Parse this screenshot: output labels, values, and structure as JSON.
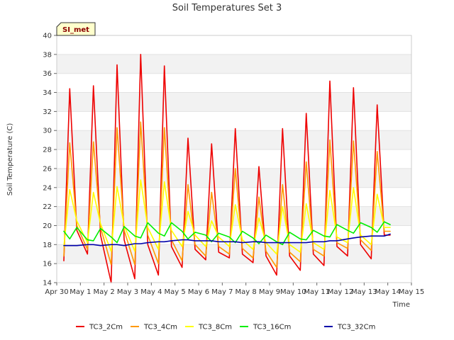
{
  "chart_data": {
    "type": "line",
    "title": "Soil Temperatures Set 3",
    "xlabel": "Time",
    "ylabel": "Soil Temperature (C)",
    "badge": "SI_met",
    "ylim": [
      14,
      40
    ],
    "yticks": [
      14,
      16,
      18,
      20,
      22,
      24,
      26,
      28,
      30,
      32,
      34,
      36,
      38,
      40
    ],
    "xlim": [
      0,
      15
    ],
    "xticks": [
      0,
      1,
      2,
      3,
      4,
      5,
      6,
      7,
      8,
      9,
      10,
      11,
      12,
      13,
      14,
      15
    ],
    "xtick_labels": [
      "Apr 30",
      "May 1",
      "May 2",
      "May 3",
      "May 4",
      "May 5",
      "May 6",
      "May 7",
      "May 8",
      "May 9",
      "May 10",
      "May 11",
      "May 12",
      "May 13",
      "May 14",
      "May 15"
    ],
    "grid": "horizontal bands",
    "legend_position": "bottom",
    "x_days": [
      0.3,
      0.55,
      0.85,
      1.3,
      1.55,
      1.85,
      2.3,
      2.55,
      2.85,
      3.3,
      3.55,
      3.85,
      4.3,
      4.55,
      4.85,
      5.3,
      5.55,
      5.85,
      6.3,
      6.55,
      6.85,
      7.3,
      7.55,
      7.85,
      8.3,
      8.55,
      8.85,
      9.3,
      9.55,
      9.85,
      10.3,
      10.55,
      10.85,
      11.3,
      11.55,
      11.85,
      12.3,
      12.55,
      12.85,
      13.3,
      13.55,
      13.85,
      14.1
    ],
    "series": [
      {
        "name": "TC3_2Cm",
        "color": "#ee0000",
        "values": [
          16.3,
          34.4,
          19.5,
          17.0,
          34.7,
          19.0,
          14.0,
          36.9,
          18.5,
          14.4,
          38.0,
          18.0,
          14.8,
          36.8,
          17.8,
          15.6,
          29.2,
          17.5,
          16.4,
          28.6,
          17.2,
          16.6,
          30.2,
          17.0,
          16.1,
          26.2,
          16.8,
          14.8,
          30.2,
          16.8,
          15.3,
          31.8,
          17.0,
          15.8,
          35.2,
          17.8,
          16.8,
          34.5,
          18.0,
          16.5,
          32.7,
          19.0,
          19.0
        ]
      },
      {
        "name": "TC3_4Cm",
        "color": "#ff9900",
        "values": [
          16.8,
          28.7,
          20.0,
          17.5,
          28.8,
          19.8,
          15.9,
          30.3,
          19.5,
          15.9,
          30.9,
          19.0,
          16.0,
          30.3,
          18.5,
          16.3,
          24.3,
          18.0,
          16.8,
          23.5,
          17.8,
          17.0,
          26.0,
          17.6,
          16.6,
          23.0,
          17.3,
          15.6,
          24.3,
          17.2,
          16.2,
          26.7,
          17.5,
          16.8,
          29.0,
          18.2,
          17.6,
          28.9,
          18.5,
          17.4,
          27.8,
          19.4,
          19.4
        ]
      },
      {
        "name": "TC3_8Cm",
        "color": "#ffff00",
        "values": [
          17.8,
          23.8,
          20.5,
          18.2,
          23.5,
          20.2,
          17.3,
          24.1,
          20.0,
          17.3,
          24.8,
          19.8,
          17.5,
          24.6,
          19.5,
          17.8,
          21.5,
          19.0,
          17.8,
          20.5,
          18.8,
          17.8,
          22.2,
          18.5,
          17.5,
          20.8,
          18.2,
          17.0,
          22.0,
          18.0,
          17.2,
          22.3,
          18.2,
          17.5,
          23.7,
          18.8,
          18.2,
          24.0,
          19.0,
          18.0,
          23.3,
          19.8,
          19.8
        ]
      },
      {
        "name": "TC3_16Cm",
        "color": "#00ee00",
        "values": [
          19.4,
          18.6,
          19.8,
          18.5,
          18.4,
          19.7,
          18.8,
          18.2,
          19.9,
          18.9,
          18.7,
          20.3,
          19.2,
          18.9,
          20.3,
          19.4,
          18.6,
          19.3,
          19.0,
          18.3,
          19.2,
          18.8,
          18.2,
          19.4,
          18.7,
          18.1,
          19.0,
          18.3,
          18.0,
          19.3,
          18.6,
          18.5,
          19.5,
          18.9,
          18.8,
          20.1,
          19.5,
          19.2,
          20.3,
          19.8,
          19.3,
          20.4,
          20.1
        ]
      },
      {
        "name": "TC3_32Cm",
        "color": "#0000aa",
        "values": [
          17.9,
          17.9,
          17.9,
          18.0,
          18.0,
          17.9,
          18.0,
          18.0,
          17.9,
          18.1,
          18.1,
          18.2,
          18.3,
          18.3,
          18.4,
          18.5,
          18.5,
          18.4,
          18.4,
          18.4,
          18.3,
          18.3,
          18.3,
          18.2,
          18.3,
          18.3,
          18.2,
          18.2,
          18.2,
          18.2,
          18.2,
          18.2,
          18.3,
          18.3,
          18.4,
          18.4,
          18.6,
          18.7,
          18.8,
          18.9,
          18.9,
          18.9,
          19.1
        ]
      }
    ]
  }
}
